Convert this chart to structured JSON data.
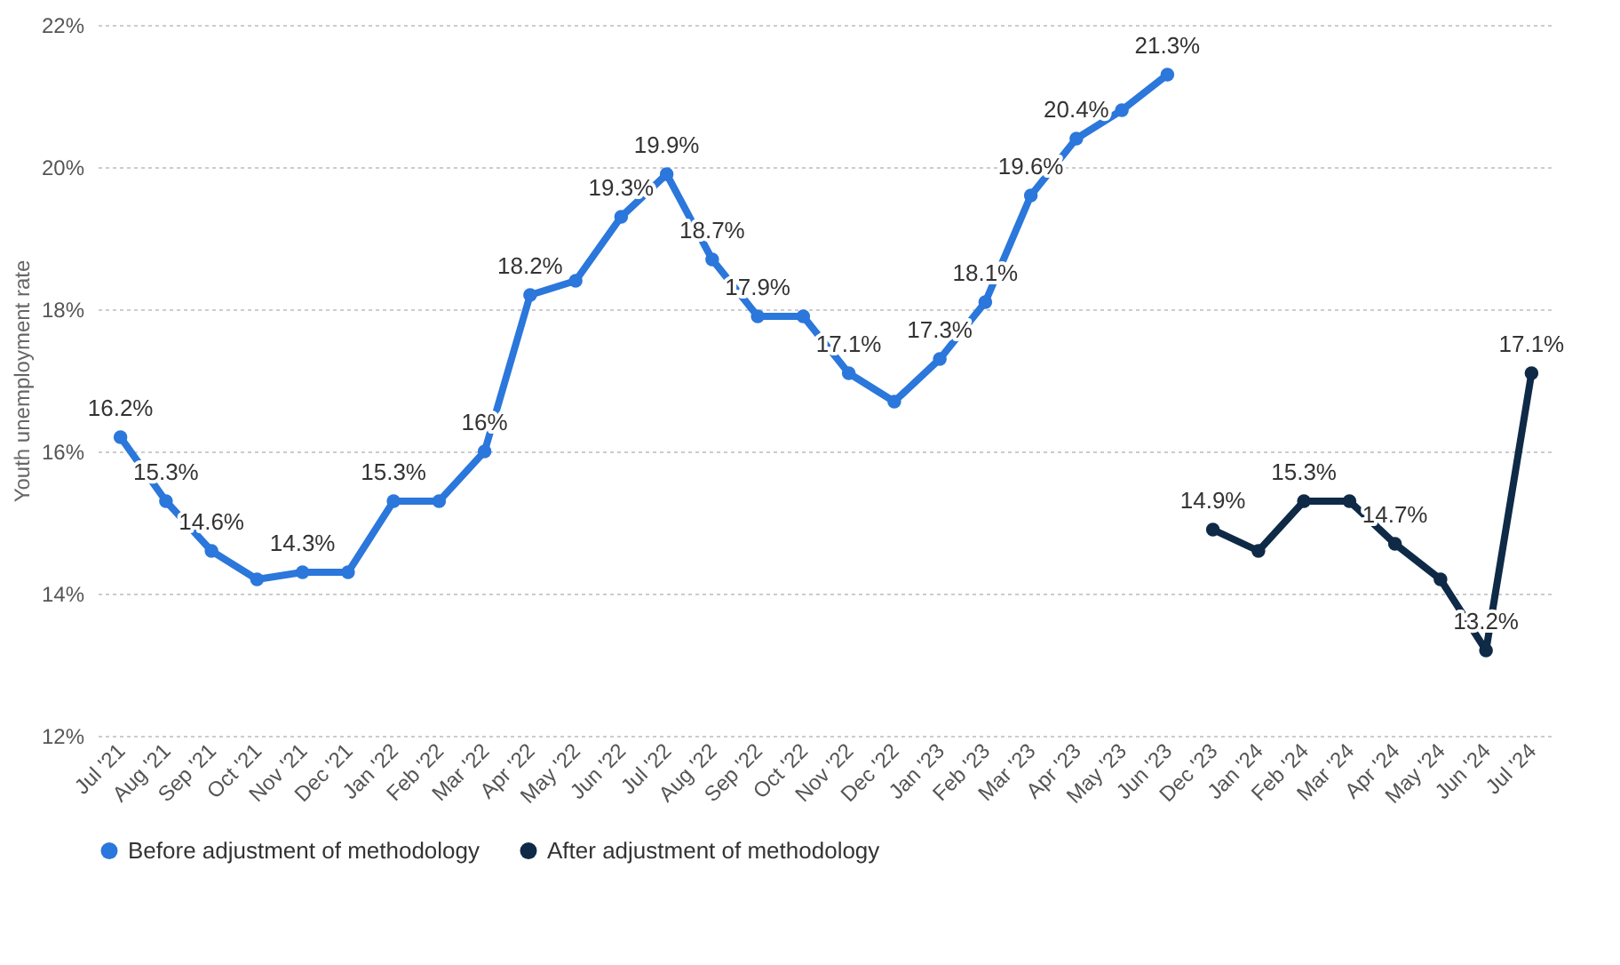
{
  "chart_data": {
    "type": "line",
    "categories": [
      "Jul '21",
      "Aug '21",
      "Sep '21",
      "Oct '21",
      "Nov '21",
      "Dec '21",
      "Jan '22",
      "Feb '22",
      "Mar '22",
      "Apr '22",
      "May '22",
      "Jun '22",
      "Jul '22",
      "Aug '22",
      "Sep '22",
      "Oct '22",
      "Nov '22",
      "Dec '22",
      "Jan '23",
      "Feb '23",
      "Mar '23",
      "Apr '23",
      "May '23",
      "Jun '23",
      "Dec '23",
      "Jan '24",
      "Feb '24",
      "Mar '24",
      "Apr '24",
      "May '24",
      "Jun '24",
      "Jul '24"
    ],
    "series": [
      {
        "name": "Before adjustment of methodology",
        "color": "#2b77db",
        "values": [
          16.2,
          15.3,
          14.6,
          14.2,
          14.3,
          14.3,
          15.3,
          15.3,
          16,
          18.2,
          18.4,
          19.3,
          19.9,
          18.7,
          17.9,
          17.9,
          17.1,
          16.7,
          17.3,
          18.1,
          19.6,
          20.4,
          20.8,
          21.3,
          null,
          null,
          null,
          null,
          null,
          null,
          null,
          null
        ],
        "value_labels": [
          "16.2%",
          "15.3%",
          "14.6%",
          null,
          "14.3%",
          null,
          "15.3%",
          null,
          "16%",
          "18.2%",
          null,
          "19.3%",
          "19.9%",
          "18.7%",
          "17.9%",
          null,
          "17.1%",
          null,
          "17.3%",
          "18.1%",
          "19.6%",
          "20.4%",
          null,
          "21.3%",
          null,
          null,
          null,
          null,
          null,
          null,
          null,
          null
        ]
      },
      {
        "name": "After adjustment of methodology",
        "color": "#0e2a47",
        "values": [
          null,
          null,
          null,
          null,
          null,
          null,
          null,
          null,
          null,
          null,
          null,
          null,
          null,
          null,
          null,
          null,
          null,
          null,
          null,
          null,
          null,
          null,
          null,
          null,
          14.9,
          14.6,
          15.3,
          15.3,
          14.7,
          14.2,
          13.2,
          17.1
        ],
        "value_labels": [
          null,
          null,
          null,
          null,
          null,
          null,
          null,
          null,
          null,
          null,
          null,
          null,
          null,
          null,
          null,
          null,
          null,
          null,
          null,
          null,
          null,
          null,
          null,
          null,
          "14.9%",
          null,
          "15.3%",
          null,
          "14.7%",
          null,
          "13.2%",
          "17.1%"
        ]
      }
    ],
    "ylabel": "Youth unemployment rate",
    "ylim": [
      12,
      22
    ],
    "yticks": [
      {
        "value": 12,
        "label": "12%"
      },
      {
        "value": 14,
        "label": "14%"
      },
      {
        "value": 16,
        "label": "16%"
      },
      {
        "value": 18,
        "label": "18%"
      },
      {
        "value": 20,
        "label": "20%"
      },
      {
        "value": 22,
        "label": "22%"
      }
    ],
    "grid": "y",
    "legend": "bottom",
    "marker": "circle",
    "line_style": "solid"
  }
}
